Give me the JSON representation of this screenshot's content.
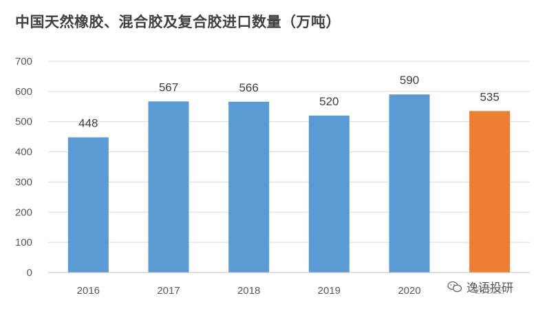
{
  "chart_data": {
    "type": "bar",
    "title": "中国天然橡胶、混合胶及复合胶进口数量（万吨）",
    "categories": [
      "2016",
      "2017",
      "2018",
      "2019",
      "2020",
      "2021E"
    ],
    "values": [
      448,
      567,
      566,
      520,
      590,
      535
    ],
    "ylim": [
      0,
      700
    ],
    "yticks": [
      0,
      100,
      200,
      300,
      400,
      500,
      600,
      700
    ],
    "grid": true,
    "colors": {
      "actual": "#5b9bd5",
      "estimate": "#ed7d31"
    },
    "highlight_index": 5
  },
  "watermark": {
    "text": "逸语投研",
    "icon": "wechat-icon"
  }
}
